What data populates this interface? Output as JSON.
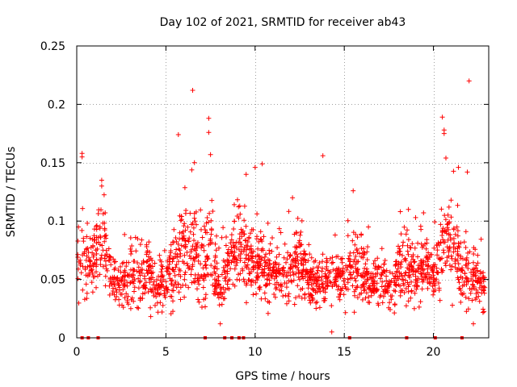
{
  "chart_data": {
    "type": "scatter",
    "title": "Day 102 of 2021, SRMTID for receiver ab43",
    "xlabel": "GPS time / hours",
    "ylabel": "SRMTID / TECUs",
    "xlim": [
      0,
      23.1
    ],
    "ylim": [
      0,
      0.25
    ],
    "xticks": [
      0,
      5,
      10,
      15,
      20
    ],
    "yticks": [
      0,
      0.05,
      0.1,
      0.15,
      0.2,
      0.25
    ],
    "x_tick_labels": [
      "0",
      "5",
      "10",
      "15",
      "20"
    ],
    "y_tick_labels": [
      "0",
      "0.05",
      "0.1",
      "0.15",
      "0.2",
      "0.25"
    ],
    "grid": true,
    "marker": "+",
    "series": [
      {
        "name": "SRMTID",
        "color": "#ff0000",
        "points_description": "dense scatter of ~2000 epochs across 0-23 h; typical 0.02-0.10 TECU",
        "cluster_centers": [
          [
            0.5,
            0.065,
            0.015
          ],
          [
            1.0,
            0.07,
            0.015
          ],
          [
            1.5,
            0.08,
            0.02
          ],
          [
            2.0,
            0.05,
            0.012
          ],
          [
            2.5,
            0.045,
            0.01
          ],
          [
            3.0,
            0.055,
            0.012
          ],
          [
            3.5,
            0.05,
            0.01
          ],
          [
            4.0,
            0.055,
            0.012
          ],
          [
            4.5,
            0.045,
            0.01
          ],
          [
            5.0,
            0.05,
            0.012
          ],
          [
            5.5,
            0.06,
            0.015
          ],
          [
            6.0,
            0.08,
            0.02
          ],
          [
            6.5,
            0.085,
            0.02
          ],
          [
            7.0,
            0.06,
            0.02
          ],
          [
            7.5,
            0.075,
            0.02
          ],
          [
            8.0,
            0.045,
            0.012
          ],
          [
            8.5,
            0.06,
            0.015
          ],
          [
            9.0,
            0.08,
            0.02
          ],
          [
            9.5,
            0.07,
            0.015
          ],
          [
            10.0,
            0.065,
            0.015
          ],
          [
            10.5,
            0.055,
            0.012
          ],
          [
            11.0,
            0.06,
            0.012
          ],
          [
            11.5,
            0.05,
            0.012
          ],
          [
            12.0,
            0.06,
            0.012
          ],
          [
            12.5,
            0.065,
            0.015
          ],
          [
            13.0,
            0.05,
            0.012
          ],
          [
            13.5,
            0.045,
            0.012
          ],
          [
            14.0,
            0.05,
            0.012
          ],
          [
            14.5,
            0.055,
            0.012
          ],
          [
            15.0,
            0.05,
            0.012
          ],
          [
            15.5,
            0.055,
            0.015
          ],
          [
            16.0,
            0.06,
            0.015
          ],
          [
            16.5,
            0.045,
            0.01
          ],
          [
            17.0,
            0.05,
            0.012
          ],
          [
            17.5,
            0.045,
            0.01
          ],
          [
            18.0,
            0.06,
            0.015
          ],
          [
            18.5,
            0.06,
            0.015
          ],
          [
            19.0,
            0.055,
            0.012
          ],
          [
            19.5,
            0.06,
            0.012
          ],
          [
            20.0,
            0.05,
            0.012
          ],
          [
            20.5,
            0.08,
            0.02
          ],
          [
            21.0,
            0.09,
            0.02
          ],
          [
            21.5,
            0.06,
            0.015
          ],
          [
            22.0,
            0.055,
            0.015
          ],
          [
            22.5,
            0.045,
            0.012
          ],
          [
            22.9,
            0.04,
            0.012
          ]
        ],
        "outliers": [
          [
            0.3,
            0.155
          ],
          [
            0.3,
            0.158
          ],
          [
            1.4,
            0.13
          ],
          [
            1.4,
            0.135
          ],
          [
            5.7,
            0.174
          ],
          [
            6.5,
            0.212
          ],
          [
            6.6,
            0.15
          ],
          [
            7.4,
            0.188
          ],
          [
            7.4,
            0.176
          ],
          [
            7.5,
            0.157
          ],
          [
            9.5,
            0.14
          ],
          [
            10.0,
            0.146
          ],
          [
            10.4,
            0.149
          ],
          [
            12.1,
            0.12
          ],
          [
            13.8,
            0.156
          ],
          [
            14.3,
            0.005
          ],
          [
            15.5,
            0.126
          ],
          [
            18.6,
            0.11
          ],
          [
            19.0,
            0.103
          ],
          [
            20.5,
            0.189
          ],
          [
            20.6,
            0.178
          ],
          [
            20.6,
            0.175
          ],
          [
            20.7,
            0.154
          ],
          [
            21.4,
            0.146
          ],
          [
            21.9,
            0.142
          ],
          [
            22.0,
            0.22
          ]
        ],
        "zero_markers": [
          0.3,
          0.65,
          1.2,
          7.2,
          8.3,
          8.7,
          9.1,
          9.35,
          15.3,
          18.5,
          20.1,
          21.6
        ]
      }
    ]
  }
}
